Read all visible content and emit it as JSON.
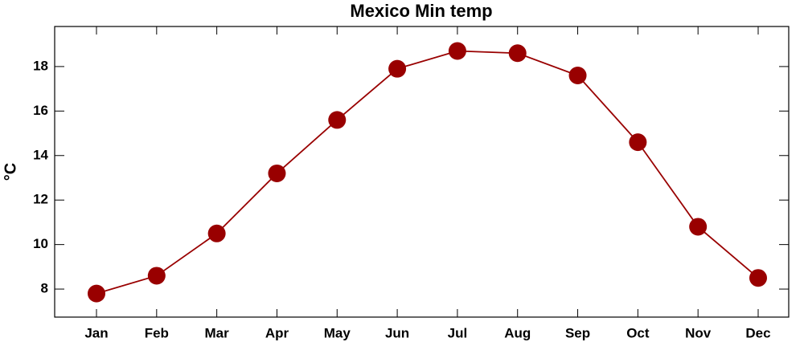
{
  "chart_data": {
    "type": "line",
    "title": "Mexico Min temp",
    "y_label": "°C",
    "categories": [
      "Jan",
      "Feb",
      "Mar",
      "Apr",
      "May",
      "Jun",
      "Jul",
      "Aug",
      "Sep",
      "Oct",
      "Nov",
      "Dec"
    ],
    "series": [
      {
        "name": "Min temp",
        "color": "#990000",
        "values": [
          7.8,
          8.6,
          10.5,
          13.2,
          15.6,
          17.9,
          18.7,
          18.6,
          17.6,
          14.6,
          10.8,
          8.5
        ]
      }
    ],
    "ylim": [
      6.74,
      19.8
    ],
    "yticks": [
      8,
      10,
      12,
      14,
      16,
      18
    ]
  }
}
